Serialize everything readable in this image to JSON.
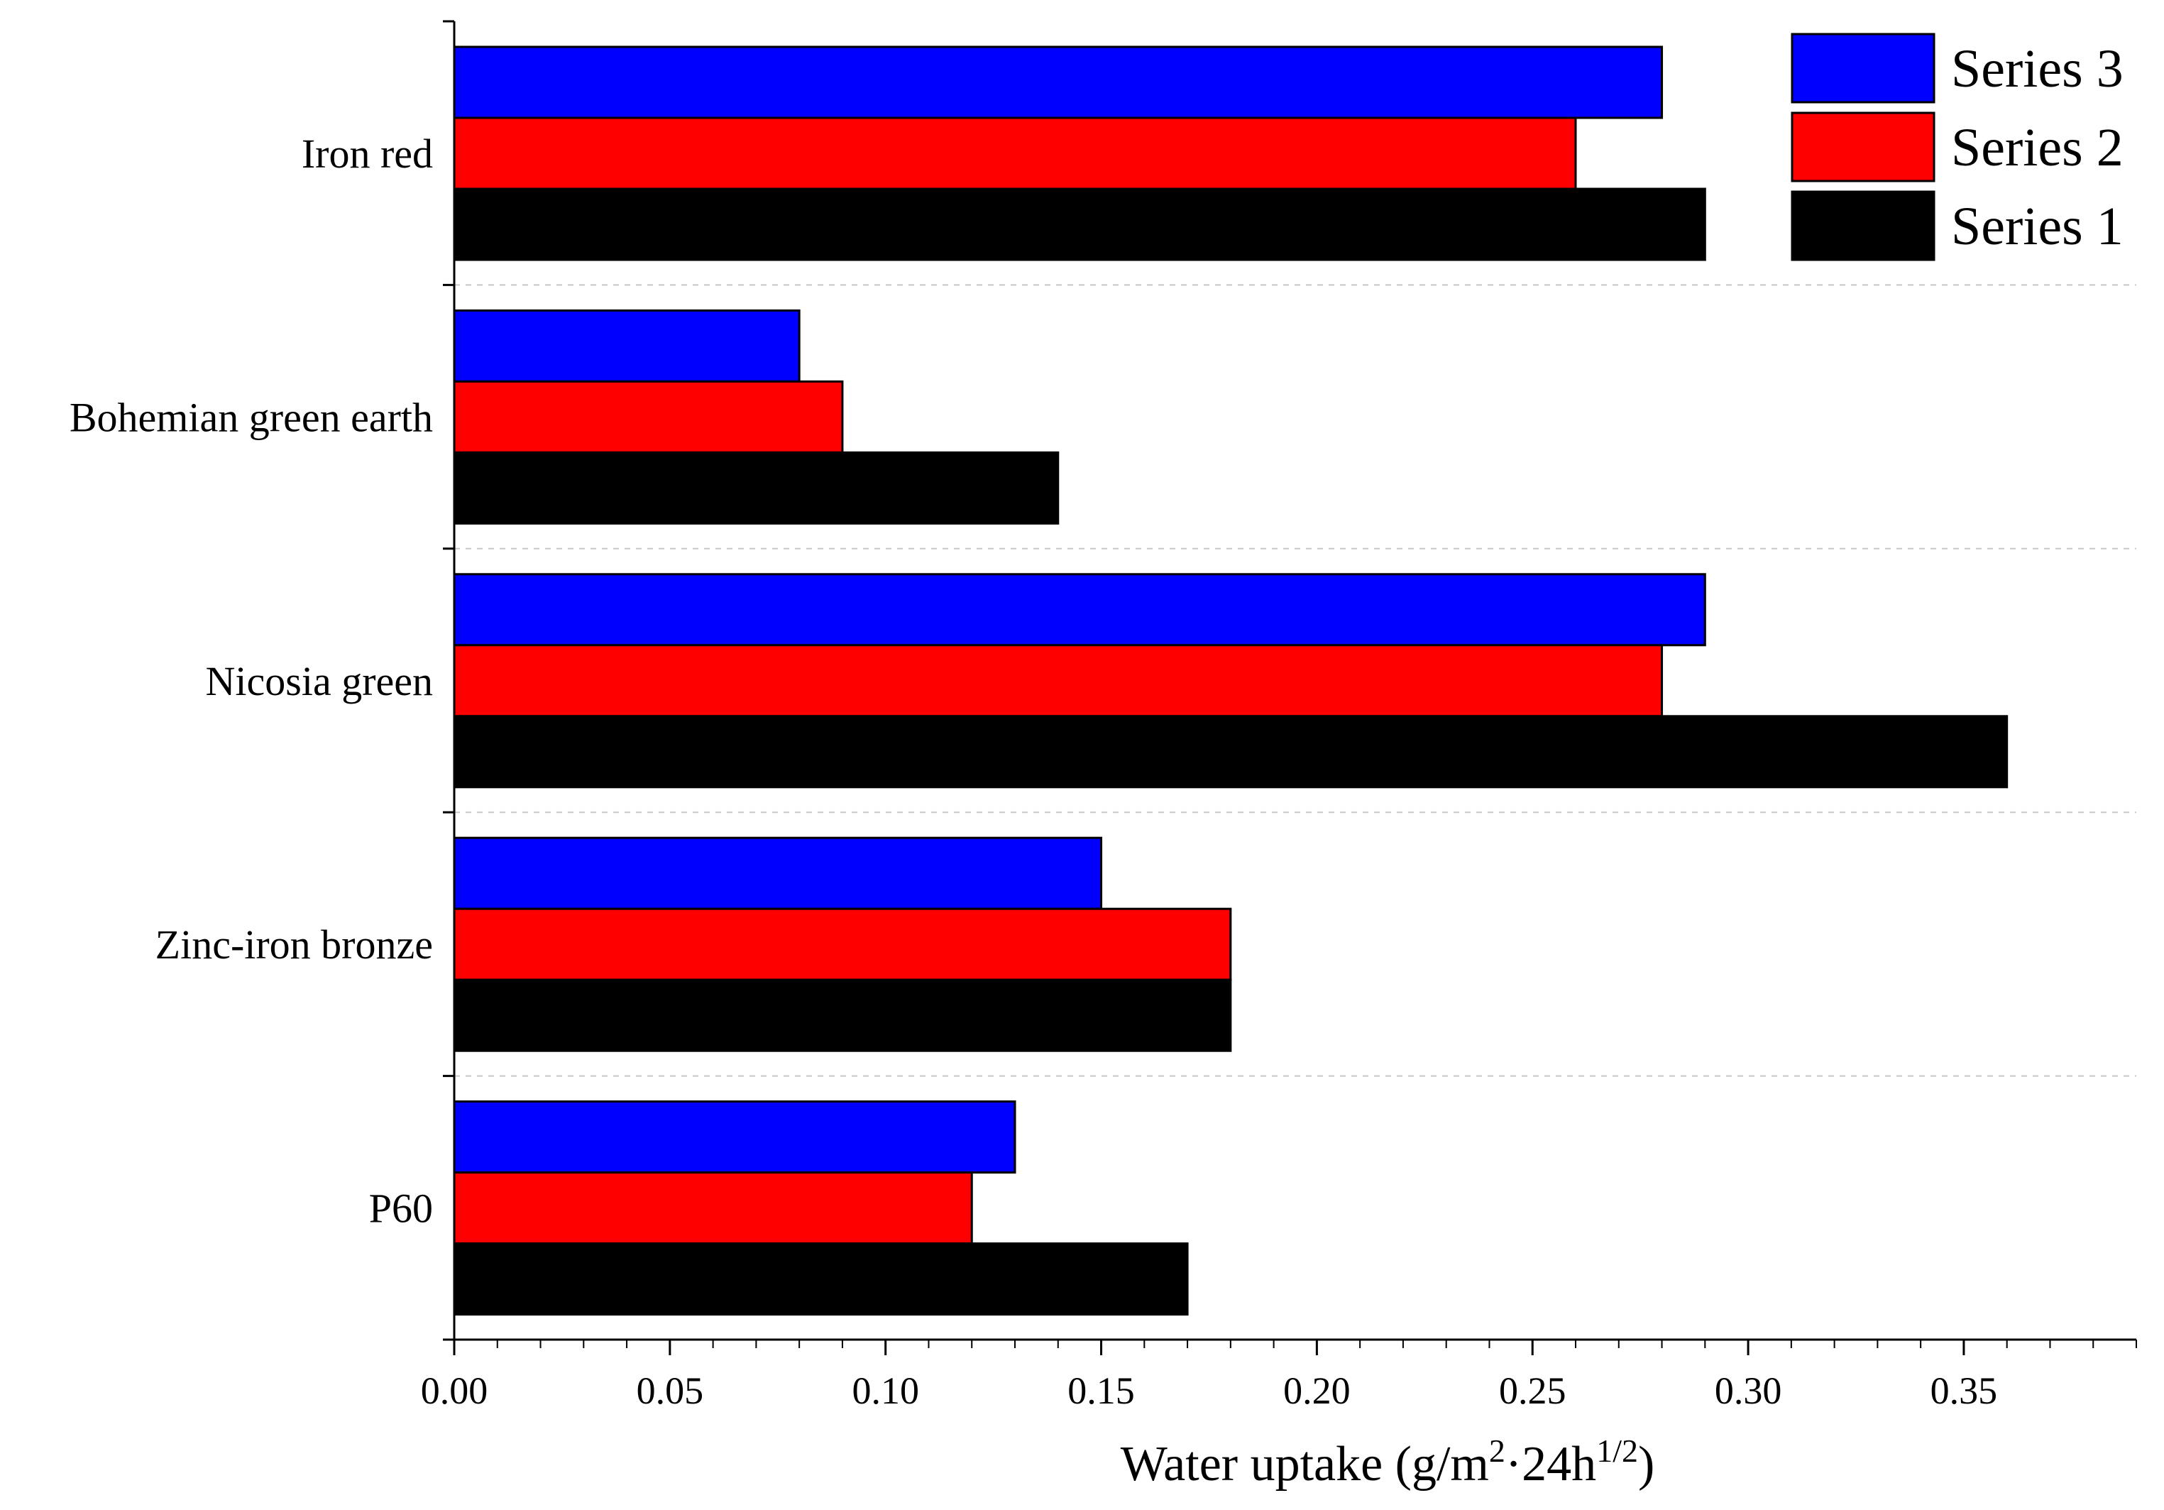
{
  "chart_data": {
    "type": "bar",
    "orientation": "horizontal",
    "title": "",
    "xlabel": "Water uptake (g/m²·24h¹ᐟ²)",
    "xlabel_parts": {
      "pre": "Water uptake (g/m",
      "sup1": "2",
      "mid": "·24h",
      "sup2": "1/2",
      "post": ")"
    },
    "ylabel": "",
    "xlim": [
      0,
      0.39
    ],
    "xticks": [
      "0.00",
      "0.05",
      "0.10",
      "0.15",
      "0.20",
      "0.25",
      "0.30",
      "0.35"
    ],
    "categories": [
      "Iron red",
      "Bohemian green earth",
      "Nicosia green",
      "Zinc-iron bronze",
      "P60"
    ],
    "series": [
      {
        "name": "Series 3",
        "color": "#0000ff",
        "values": [
          0.28,
          0.08,
          0.29,
          0.15,
          0.13
        ]
      },
      {
        "name": "Series 2",
        "color": "#ff0000",
        "values": [
          0.26,
          0.09,
          0.28,
          0.18,
          0.12
        ]
      },
      {
        "name": "Series 1",
        "color": "#000000",
        "values": [
          0.29,
          0.14,
          0.36,
          0.18,
          0.17
        ]
      }
    ],
    "legend": {
      "position": "top-right",
      "entries": [
        "Series 3",
        "Series 2",
        "Series 1"
      ]
    },
    "grid": "dashed separators between categories"
  }
}
